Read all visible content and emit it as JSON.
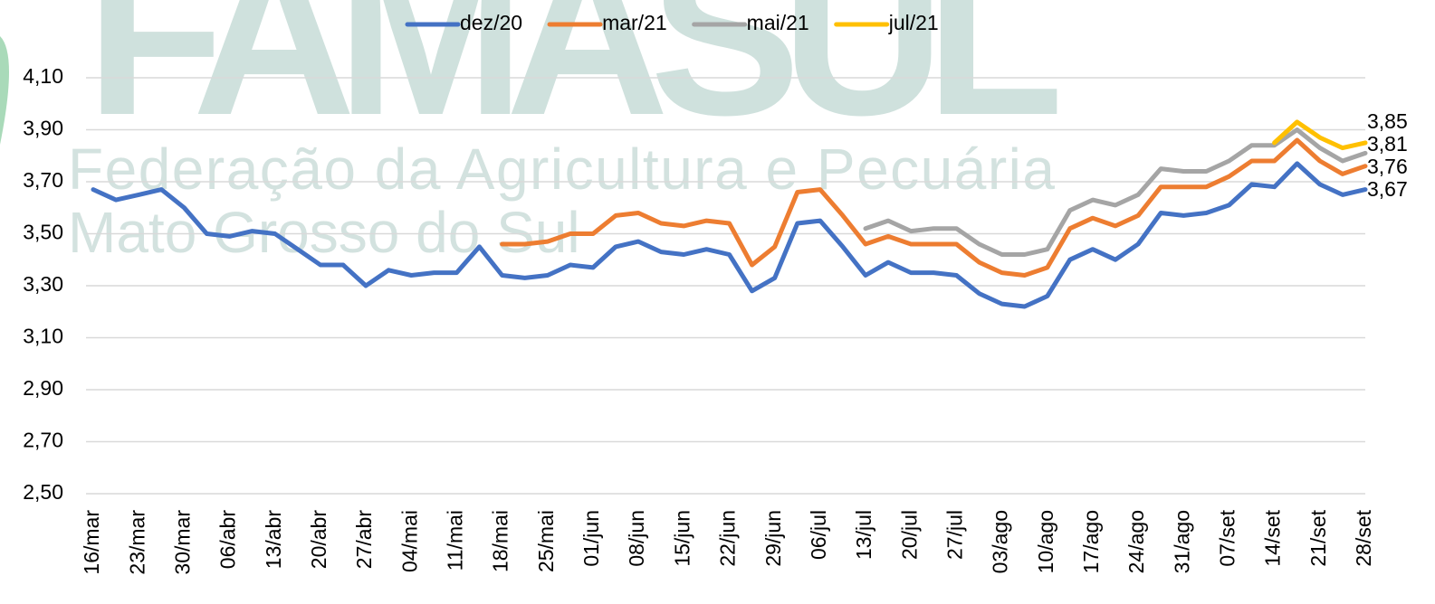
{
  "chart_data": {
    "type": "line",
    "watermark": {
      "title": "FAMASUL",
      "line1": "Federação da Agricultura e Pecuária",
      "line2": "Mato Grosso do Sul"
    },
    "categories": [
      "16/mar",
      null,
      "23/mar",
      null,
      "30/mar",
      null,
      "06/abr",
      null,
      "13/abr",
      null,
      "20/abr",
      null,
      "27/abr",
      null,
      "04/mai",
      null,
      "11/mai",
      null,
      "18/mai",
      null,
      "25/mai",
      null,
      "01/jun",
      null,
      "08/jun",
      null,
      "15/jun",
      null,
      "22/jun",
      null,
      "29/jun",
      null,
      "06/jul",
      null,
      "13/jul",
      null,
      "20/jul",
      null,
      "27/jul",
      null,
      "03/ago",
      null,
      "10/ago",
      null,
      "17/ago",
      null,
      "24/ago",
      null,
      "31/ago",
      null,
      "07/set",
      null,
      "14/set",
      null,
      "21/set",
      null,
      "28/set"
    ],
    "series": [
      {
        "name": "dez/20",
        "color": "#4472c4",
        "values": [
          3.67,
          3.63,
          3.65,
          3.67,
          3.6,
          3.5,
          3.49,
          3.51,
          3.5,
          3.44,
          3.38,
          3.38,
          3.3,
          3.36,
          3.34,
          3.35,
          3.35,
          3.45,
          3.34,
          3.33,
          3.34,
          3.38,
          3.37,
          3.45,
          3.47,
          3.43,
          3.42,
          3.44,
          3.42,
          3.28,
          3.33,
          3.54,
          3.55,
          3.45,
          3.34,
          3.39,
          3.35,
          3.35,
          3.34,
          3.27,
          3.23,
          3.22,
          3.26,
          3.4,
          3.44,
          3.4,
          3.46,
          3.58,
          3.57,
          3.58,
          3.61,
          3.69,
          3.68,
          3.77,
          3.69,
          3.65,
          3.67
        ],
        "value_labels": [
          null,
          null,
          null,
          null,
          null,
          null,
          null,
          null,
          null,
          null,
          null,
          null,
          null,
          null,
          null,
          null,
          null,
          null,
          null,
          null,
          null,
          null,
          null,
          null,
          null,
          null,
          null,
          null,
          null,
          null,
          null,
          null,
          null,
          null,
          null,
          null,
          null,
          null,
          null,
          null,
          null,
          null,
          null,
          null,
          null,
          null,
          null,
          null,
          null,
          null,
          null,
          null,
          null,
          null,
          null,
          null,
          "3,67"
        ]
      },
      {
        "name": "mar/21",
        "color": "#ed7d31",
        "values": [
          null,
          null,
          null,
          null,
          null,
          null,
          null,
          null,
          null,
          null,
          null,
          null,
          null,
          null,
          null,
          null,
          null,
          null,
          3.46,
          3.46,
          3.47,
          3.5,
          3.5,
          3.57,
          3.58,
          3.54,
          3.53,
          3.55,
          3.54,
          3.38,
          3.45,
          3.66,
          3.67,
          3.57,
          3.46,
          3.49,
          3.46,
          3.46,
          3.46,
          3.39,
          3.35,
          3.34,
          3.37,
          3.52,
          3.56,
          3.53,
          3.57,
          3.68,
          3.68,
          3.68,
          3.72,
          3.78,
          3.78,
          3.86,
          3.78,
          3.73,
          3.76
        ],
        "value_labels": [
          null,
          null,
          null,
          null,
          null,
          null,
          null,
          null,
          null,
          null,
          null,
          null,
          null,
          null,
          null,
          null,
          null,
          null,
          null,
          null,
          null,
          null,
          null,
          null,
          null,
          null,
          null,
          null,
          null,
          null,
          null,
          null,
          null,
          null,
          null,
          null,
          null,
          null,
          null,
          null,
          null,
          null,
          null,
          null,
          null,
          null,
          null,
          null,
          null,
          null,
          null,
          null,
          null,
          null,
          null,
          null,
          "3,76"
        ]
      },
      {
        "name": "mai/21",
        "color": "#a5a5a5",
        "values": [
          null,
          null,
          null,
          null,
          null,
          null,
          null,
          null,
          null,
          null,
          null,
          null,
          null,
          null,
          null,
          null,
          null,
          null,
          null,
          null,
          null,
          null,
          null,
          null,
          null,
          null,
          null,
          null,
          null,
          null,
          null,
          null,
          null,
          null,
          3.52,
          3.55,
          3.51,
          3.52,
          3.52,
          3.46,
          3.42,
          3.42,
          3.44,
          3.59,
          3.63,
          3.61,
          3.65,
          3.75,
          3.74,
          3.74,
          3.78,
          3.84,
          3.84,
          3.9,
          3.83,
          3.78,
          3.81
        ],
        "value_labels": [
          null,
          null,
          null,
          null,
          null,
          null,
          null,
          null,
          null,
          null,
          null,
          null,
          null,
          null,
          null,
          null,
          null,
          null,
          null,
          null,
          null,
          null,
          null,
          null,
          null,
          null,
          null,
          null,
          null,
          null,
          null,
          null,
          null,
          null,
          null,
          null,
          null,
          null,
          null,
          null,
          null,
          null,
          null,
          null,
          null,
          null,
          null,
          null,
          null,
          null,
          null,
          null,
          null,
          null,
          null,
          null,
          "3,81"
        ]
      },
      {
        "name": "jul/21",
        "color": "#ffc000",
        "values": [
          null,
          null,
          null,
          null,
          null,
          null,
          null,
          null,
          null,
          null,
          null,
          null,
          null,
          null,
          null,
          null,
          null,
          null,
          null,
          null,
          null,
          null,
          null,
          null,
          null,
          null,
          null,
          null,
          null,
          null,
          null,
          null,
          null,
          null,
          null,
          null,
          null,
          null,
          null,
          null,
          null,
          null,
          null,
          null,
          null,
          null,
          null,
          null,
          null,
          null,
          null,
          null,
          3.85,
          3.93,
          3.87,
          3.83,
          3.85
        ],
        "value_labels": [
          null,
          null,
          null,
          null,
          null,
          null,
          null,
          null,
          null,
          null,
          null,
          null,
          null,
          null,
          null,
          null,
          null,
          null,
          null,
          null,
          null,
          null,
          null,
          null,
          null,
          null,
          null,
          null,
          null,
          null,
          null,
          null,
          null,
          null,
          null,
          null,
          null,
          null,
          null,
          null,
          null,
          null,
          null,
          null,
          null,
          null,
          null,
          null,
          null,
          null,
          null,
          null,
          null,
          null,
          null,
          null,
          "3,85"
        ]
      }
    ],
    "ylim": [
      2.5,
      4.1
    ],
    "yticks": [
      {
        "value": 2.5,
        "label": "2,50"
      },
      {
        "value": 2.7,
        "label": "2,70"
      },
      {
        "value": 2.9,
        "label": "2,90"
      },
      {
        "value": 3.1,
        "label": "3,10"
      },
      {
        "value": 3.3,
        "label": "3,30"
      },
      {
        "value": 3.5,
        "label": "3,50"
      },
      {
        "value": 3.7,
        "label": "3,70"
      },
      {
        "value": 3.9,
        "label": "3,90"
      },
      {
        "value": 4.1,
        "label": "4,10"
      }
    ],
    "grid": true,
    "legend": "top"
  }
}
